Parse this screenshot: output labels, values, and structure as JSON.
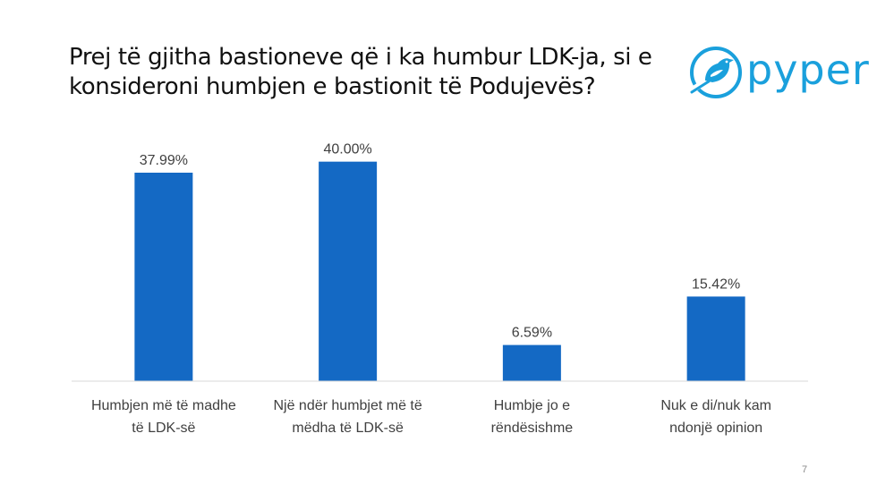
{
  "slide": {
    "title_lines": [
      "Prej të gjitha bastioneve që i ka humbur LDK-ja, si e",
      "konsideroni humbjen e bastionit të Podujevës?"
    ],
    "page_number": "7"
  },
  "logo": {
    "text": "pyper",
    "icon": "bird-logo-icon",
    "color": "#1aa0dc"
  },
  "chart_data": {
    "type": "bar",
    "title": "",
    "categories": [
      [
        "Humbjen më të madhe",
        "të LDK-së"
      ],
      [
        "Një ndër humbjet më të",
        "mëdha të LDK-së"
      ],
      [
        "Humbje jo e",
        "rëndësishme"
      ],
      [
        "Nuk e di/nuk kam",
        "ndonjë opinion"
      ]
    ],
    "values": [
      37.99,
      40.0,
      6.59,
      15.42
    ],
    "value_labels": [
      "37.99%",
      "40.00%",
      "6.59%",
      "15.42%"
    ],
    "ylim": [
      0,
      45
    ],
    "bar_color": "#1469c4",
    "grid": false,
    "legend": "none"
  }
}
